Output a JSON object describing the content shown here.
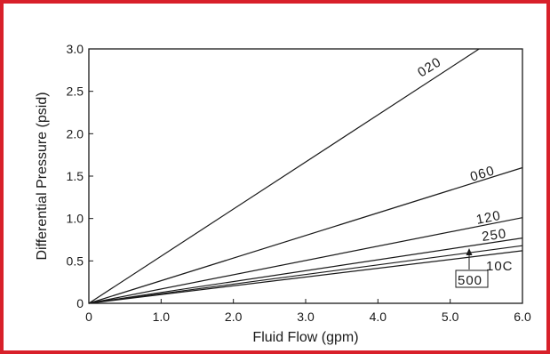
{
  "frame_color": "#d8202a",
  "chart_data": {
    "type": "line",
    "title": "",
    "xlabel": "Fluid Flow (gpm)",
    "ylabel": "Differential Pressure (psid)",
    "xlim": [
      0,
      6.0
    ],
    "ylim": [
      0,
      3.0
    ],
    "x_ticks": [
      "0",
      "1.0",
      "2.0",
      "3.0",
      "4.0",
      "5.0",
      "6.0"
    ],
    "y_ticks": [
      "0",
      "0.5",
      "1.0",
      "1.5",
      "2.0",
      "2.5",
      "3.0"
    ],
    "grid": false,
    "legend": "none",
    "series": [
      {
        "name": "020",
        "x": [
          0,
          5.4
        ],
        "y": [
          0,
          3.0
        ]
      },
      {
        "name": "060",
        "x": [
          0,
          6.0
        ],
        "y": [
          0,
          1.6
        ]
      },
      {
        "name": "120",
        "x": [
          0,
          6.0
        ],
        "y": [
          0,
          1.01
        ]
      },
      {
        "name": "250",
        "x": [
          0,
          6.0
        ],
        "y": [
          0,
          0.77
        ]
      },
      {
        "name": "500",
        "x": [
          0,
          6.0
        ],
        "y": [
          0,
          0.68
        ]
      },
      {
        "name": "10C",
        "x": [
          0,
          6.0
        ],
        "y": [
          0,
          0.62
        ]
      }
    ]
  }
}
